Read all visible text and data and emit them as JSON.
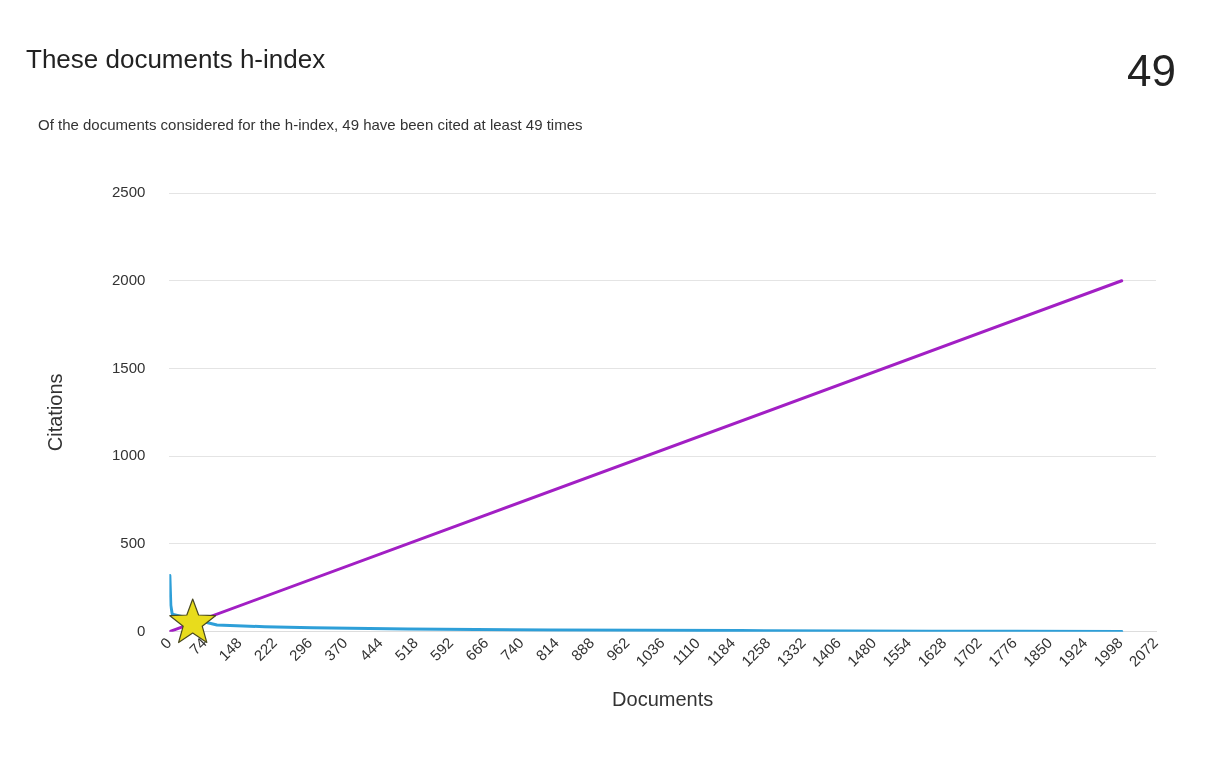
{
  "chart_data": {
    "type": "line",
    "title": "These documents h-index",
    "subtitle": "Of the documents considered for the h-index, 49 have been cited at least 49 times",
    "annotations": [
      "49"
    ],
    "xlabel": "Documents",
    "ylabel": "Citations",
    "xlim": [
      0,
      2072
    ],
    "xticks": [
      0,
      74,
      148,
      222,
      296,
      370,
      444,
      518,
      592,
      666,
      740,
      814,
      888,
      962,
      1036,
      1110,
      1184,
      1258,
      1332,
      1406,
      1480,
      1554,
      1628,
      1702,
      1776,
      1850,
      1924,
      1998,
      2072
    ],
    "ylim": [
      0,
      2500
    ],
    "yticks": [
      0,
      500,
      1000,
      1500,
      2000,
      2500
    ],
    "grid": "y",
    "legend": false,
    "line_style": "solid",
    "series": [
      {
        "color": "#2e9fd8",
        "marker": "none",
        "x": [
          1,
          3,
          6,
          10,
          20,
          49,
          100,
          200,
          300,
          500,
          800,
          1200,
          1600,
          2000
        ],
        "values": [
          320,
          150,
          100,
          null,
          null,
          null,
          38,
          28,
          22,
          15,
          10,
          6,
          3,
          1
        ]
      },
      {
        "color": "#a21fc4",
        "marker": "none",
        "x": [
          0,
          2000
        ],
        "values": [
          0,
          2000
        ]
      },
      {
        "type": "scatter",
        "color": "#e8dc1c",
        "marker": "star",
        "x": [
          49
        ],
        "values": [
          49
        ]
      }
    ]
  }
}
